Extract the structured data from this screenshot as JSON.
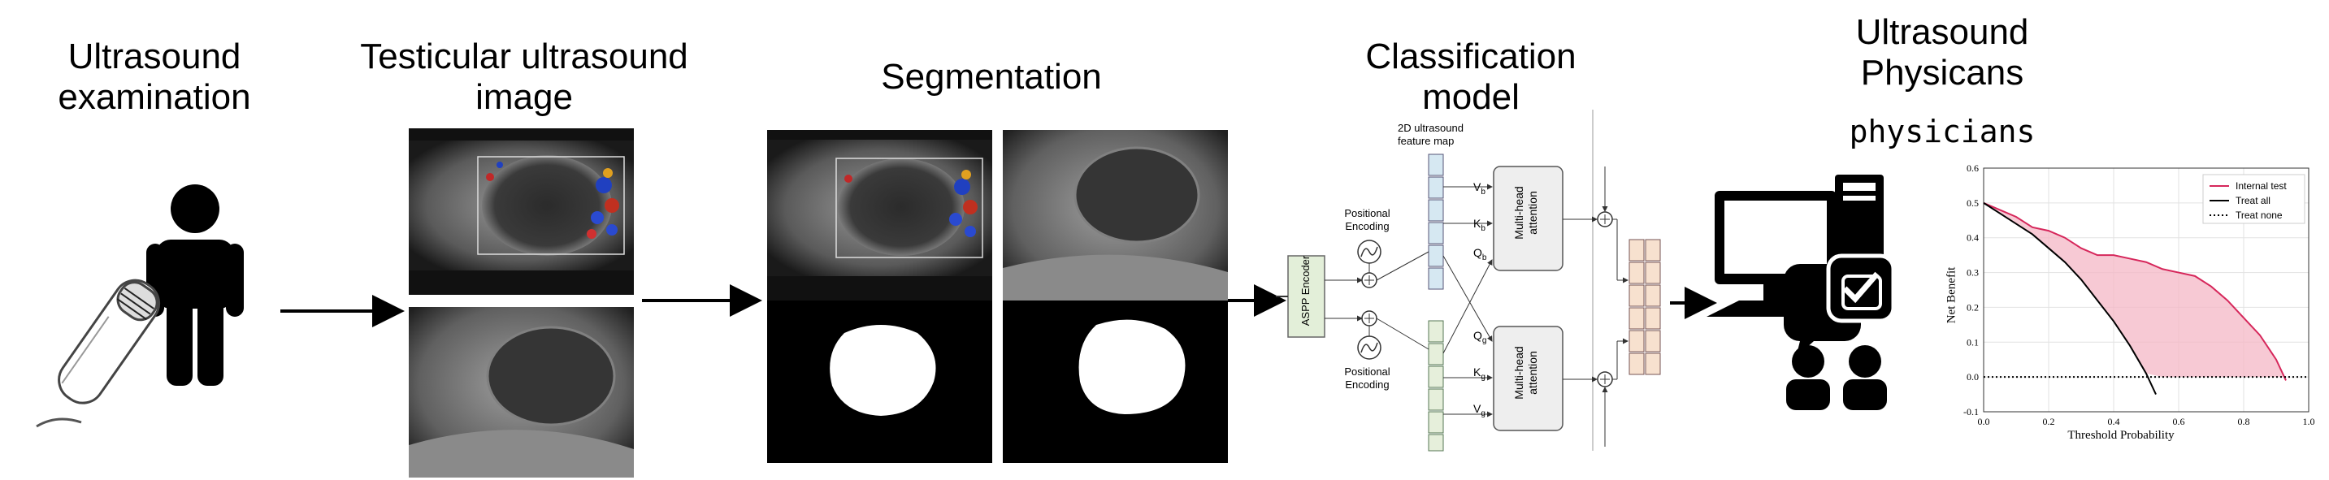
{
  "stages": {
    "exam": "Ultrasound examination",
    "image": "Testicular ultrasound image",
    "segmentation": "Segmentation",
    "classification": "Classification model",
    "physicians_title": "Ultrasound Physicans",
    "physicians_sub": "physicians"
  },
  "model": {
    "feature_map": "2D ultrasound feature map",
    "pos_enc_top": "Positional Encoding",
    "pos_enc_bottom": "Positional Encoding",
    "encoder": "ASPP Encoder",
    "attention_top": "Multi-head attention",
    "attention_bottom": "Multi-head attention",
    "vb": "V",
    "kb": "K",
    "qb": "Q",
    "qg": "Q",
    "kg": "K",
    "vg": "V",
    "sub_b": "b",
    "sub_g": "g"
  },
  "chart_data": {
    "type": "line",
    "title": "",
    "xlabel": "Threshold Probability",
    "ylabel": "Net Benefit",
    "xlim": [
      0.0,
      1.0
    ],
    "ylim": [
      -0.1,
      0.6
    ],
    "xticks": [
      "0.0",
      "0.2",
      "0.4",
      "0.6",
      "0.8",
      "1.0"
    ],
    "yticks": [
      "-0.1",
      "0.0",
      "0.1",
      "0.2",
      "0.3",
      "0.4",
      "0.5",
      "0.6"
    ],
    "grid": true,
    "legend_placement": "top-right",
    "series": [
      {
        "name": "Internal test",
        "color": "#d6275b",
        "style": "solid",
        "x": [
          0.0,
          0.05,
          0.1,
          0.15,
          0.2,
          0.25,
          0.3,
          0.35,
          0.4,
          0.45,
          0.5,
          0.55,
          0.6,
          0.65,
          0.7,
          0.75,
          0.8,
          0.85,
          0.9,
          0.93
        ],
        "y": [
          0.5,
          0.48,
          0.46,
          0.43,
          0.42,
          0.4,
          0.37,
          0.35,
          0.35,
          0.34,
          0.33,
          0.31,
          0.3,
          0.29,
          0.26,
          0.22,
          0.17,
          0.12,
          0.05,
          -0.01
        ]
      },
      {
        "name": "Treat all",
        "color": "#000000",
        "style": "solid",
        "x": [
          0.0,
          0.05,
          0.1,
          0.15,
          0.2,
          0.25,
          0.3,
          0.35,
          0.4,
          0.45,
          0.5,
          0.53
        ],
        "y": [
          0.5,
          0.47,
          0.44,
          0.41,
          0.37,
          0.33,
          0.28,
          0.22,
          0.16,
          0.09,
          0.01,
          -0.05
        ]
      },
      {
        "name": "Treat none",
        "color": "#000000",
        "style": "dotted",
        "x": [
          0.0,
          1.0
        ],
        "y": [
          0.0,
          0.0
        ]
      }
    ]
  },
  "colors": {
    "encoder_fill": "#e3efd9",
    "feature_top": "#d6e8f2",
    "feature_bottom": "#e6efdb",
    "output_cells": "#f7e1cf",
    "attention_fill": "#eeeeee",
    "area_fill": "#f4b7c6"
  }
}
